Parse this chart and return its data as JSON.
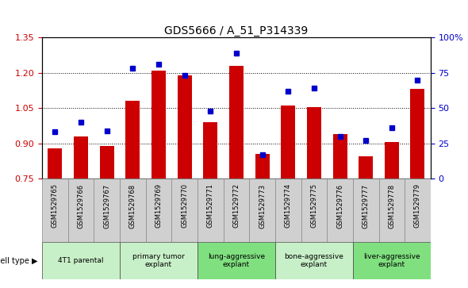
{
  "title": "GDS5666 / A_51_P314339",
  "samples": [
    "GSM1529765",
    "GSM1529766",
    "GSM1529767",
    "GSM1529768",
    "GSM1529769",
    "GSM1529770",
    "GSM1529771",
    "GSM1529772",
    "GSM1529773",
    "GSM1529774",
    "GSM1529775",
    "GSM1529776",
    "GSM1529777",
    "GSM1529778",
    "GSM1529779"
  ],
  "counts": [
    0.88,
    0.93,
    0.89,
    1.08,
    1.21,
    1.19,
    0.99,
    1.23,
    0.855,
    1.06,
    1.055,
    0.94,
    0.845,
    0.905,
    1.13
  ],
  "percentiles": [
    33,
    40,
    34,
    78,
    81,
    73,
    48,
    89,
    17,
    62,
    64,
    30,
    27,
    36,
    70
  ],
  "bar_color": "#cc0000",
  "dot_color": "#0000cc",
  "groups": [
    {
      "label": "4T1 parental",
      "start": 0,
      "end": 2,
      "color": "#c8f0c8"
    },
    {
      "label": "primary tumor\nexplant",
      "start": 3,
      "end": 5,
      "color": "#c8f0c8"
    },
    {
      "label": "lung-aggressive\nexplant",
      "start": 6,
      "end": 8,
      "color": "#80e080"
    },
    {
      "label": "bone-aggressive\nexplant",
      "start": 9,
      "end": 11,
      "color": "#c8f0c8"
    },
    {
      "label": "liver-aggressive\nexplant",
      "start": 12,
      "end": 14,
      "color": "#80e080"
    }
  ],
  "ylim_left": [
    0.75,
    1.35
  ],
  "ylim_right": [
    0,
    100
  ],
  "yticks_left": [
    0.75,
    0.9,
    1.05,
    1.2,
    1.35
  ],
  "yticks_right": [
    0,
    25,
    50,
    75,
    100
  ],
  "ytick_labels_right": [
    "0",
    "25",
    "50",
    "75",
    "100%"
  ],
  "baseline": 0.75
}
